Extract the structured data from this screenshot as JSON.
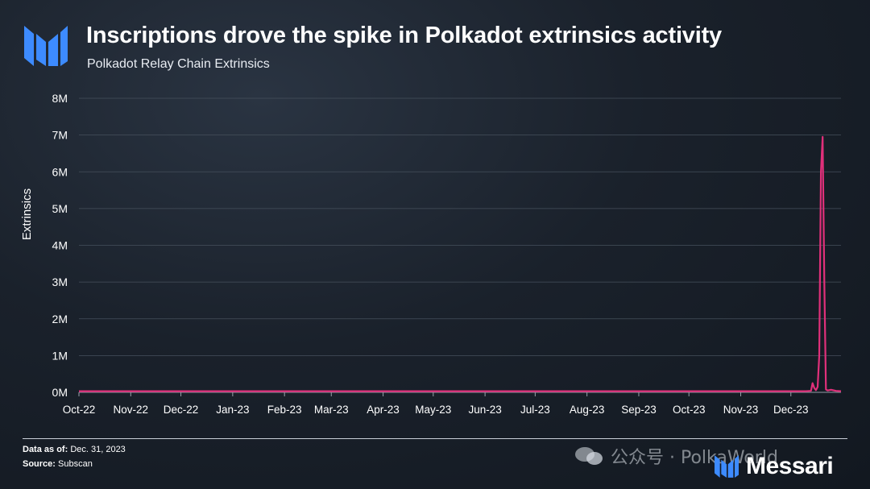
{
  "header": {
    "title": "Inscriptions drove the spike in Polkadot extrinsics activity",
    "subtitle": "Polkadot Relay Chain Extrinsics"
  },
  "footer": {
    "data_as_of_label": "Data as of:",
    "data_as_of_value": "Dec. 31, 2023",
    "source_label": "Source:",
    "source_value": "Subscan",
    "brand": "Messari",
    "watermark": "公众号 · PolkaWorld"
  },
  "colors": {
    "line": "#e0307a",
    "accent_logo": "#3d8bff",
    "grid": "#46505c"
  },
  "chart_data": {
    "type": "line",
    "ylabel": "Extrinsics",
    "xlabel": "",
    "ylim": [
      0,
      8000000
    ],
    "yticks": [
      0,
      1000000,
      2000000,
      3000000,
      4000000,
      5000000,
      6000000,
      7000000,
      8000000
    ],
    "ytick_labels": [
      "0M",
      "1M",
      "2M",
      "3M",
      "4M",
      "5M",
      "6M",
      "7M",
      "8M"
    ],
    "xlim": [
      "2022-10-01",
      "2023-12-31"
    ],
    "xtick_labels": [
      "Oct-22",
      "Nov-22",
      "Dec-22",
      "Jan-23",
      "Feb-23",
      "Mar-23",
      "Apr-23",
      "May-23",
      "Jun-23",
      "Jul-23",
      "Aug-23",
      "Sep-23",
      "Oct-23",
      "Nov-23",
      "Dec-23"
    ],
    "xtick_dates": [
      "2022-10-01",
      "2022-11-01",
      "2022-12-01",
      "2023-01-01",
      "2023-02-01",
      "2023-03-01",
      "2023-04-01",
      "2023-05-01",
      "2023-06-01",
      "2023-07-01",
      "2023-08-01",
      "2023-09-01",
      "2023-10-01",
      "2023-11-01",
      "2023-12-01"
    ],
    "grid": true,
    "series": [
      {
        "x": [
          "2022-10-01",
          "2023-01-01",
          "2023-04-01",
          "2023-07-01",
          "2023-10-01",
          "2023-12-10",
          "2023-12-13",
          "2023-12-14",
          "2023-12-15",
          "2023-12-16",
          "2023-12-17",
          "2023-12-18",
          "2023-12-19",
          "2023-12-20",
          "2023-12-21",
          "2023-12-22",
          "2023-12-23",
          "2023-12-25",
          "2023-12-28",
          "2023-12-31"
        ],
        "values": [
          30000,
          30000,
          30000,
          30000,
          30000,
          30000,
          40000,
          250000,
          120000,
          60000,
          150000,
          1000000,
          6000000,
          6950000,
          3000000,
          80000,
          50000,
          70000,
          40000,
          30000
        ]
      }
    ]
  }
}
